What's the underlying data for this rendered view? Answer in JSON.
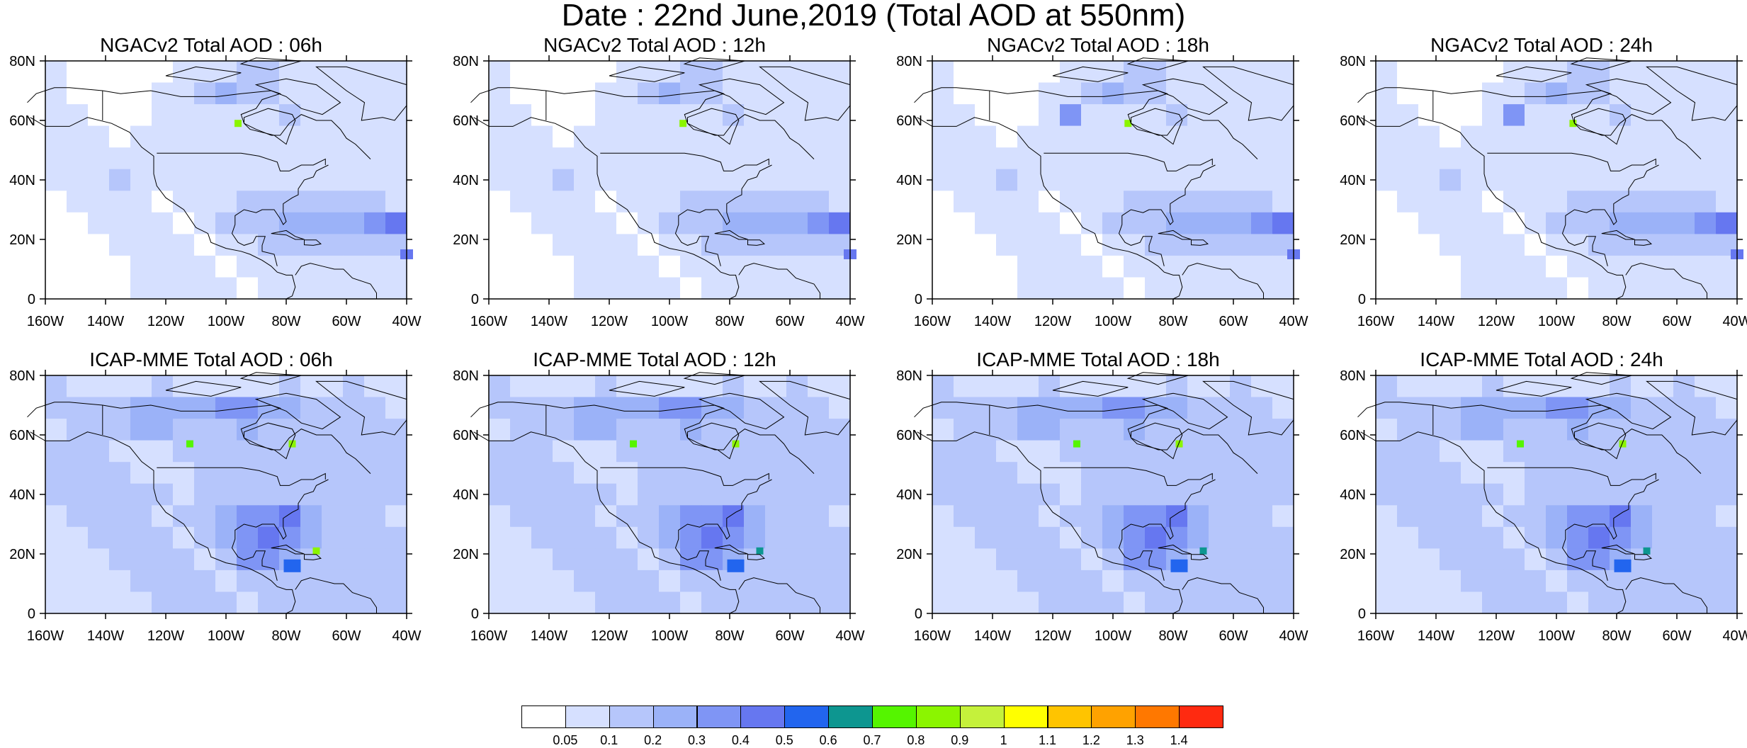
{
  "figure": {
    "title": "Date : 22nd June,2019 (Total AOD at 550nm)"
  },
  "axes": {
    "lat_labels": [
      "80N",
      "60N",
      "40N",
      "20N",
      "0"
    ],
    "lon_labels": [
      "160W",
      "140W",
      "120W",
      "100W",
      "80W",
      "60W",
      "40W"
    ],
    "lat_range": [
      0,
      80
    ],
    "lon_range": [
      -160,
      -40
    ]
  },
  "panels": [
    {
      "title": "NGACv2 Total AOD : 06h",
      "model": "NGACv2",
      "hour": "06h"
    },
    {
      "title": "NGACv2 Total AOD : 12h",
      "model": "NGACv2",
      "hour": "12h"
    },
    {
      "title": "NGACv2 Total AOD : 18h",
      "model": "NGACv2",
      "hour": "18h"
    },
    {
      "title": "NGACv2 Total AOD : 24h",
      "model": "NGACv2",
      "hour": "24h"
    },
    {
      "title": "ICAP-MME Total AOD : 06h",
      "model": "ICAP-MME",
      "hour": "06h"
    },
    {
      "title": "ICAP-MME Total AOD : 12h",
      "model": "ICAP-MME",
      "hour": "12h"
    },
    {
      "title": "ICAP-MME Total AOD : 18h",
      "model": "ICAP-MME",
      "hour": "18h"
    },
    {
      "title": "ICAP-MME Total AOD : 24h",
      "model": "ICAP-MME",
      "hour": "24h"
    }
  ],
  "colorbar": {
    "labels": [
      "0.05",
      "0.1",
      "0.2",
      "0.3",
      "0.4",
      "0.5",
      "0.6",
      "0.7",
      "0.8",
      "0.9",
      "1",
      "1.1",
      "1.2",
      "1.3",
      "1.4"
    ],
    "colors": [
      "#ffffff",
      "#d6e0ff",
      "#b6c6fb",
      "#9bb2f8",
      "#7f95f5",
      "#6677f0",
      "#2265ee",
      "#0d9690",
      "#55f500",
      "#8bf500",
      "#c5f13b",
      "#ffff00",
      "#ffc400",
      "#ffa200",
      "#ff7800",
      "#ff2a10"
    ]
  }
}
